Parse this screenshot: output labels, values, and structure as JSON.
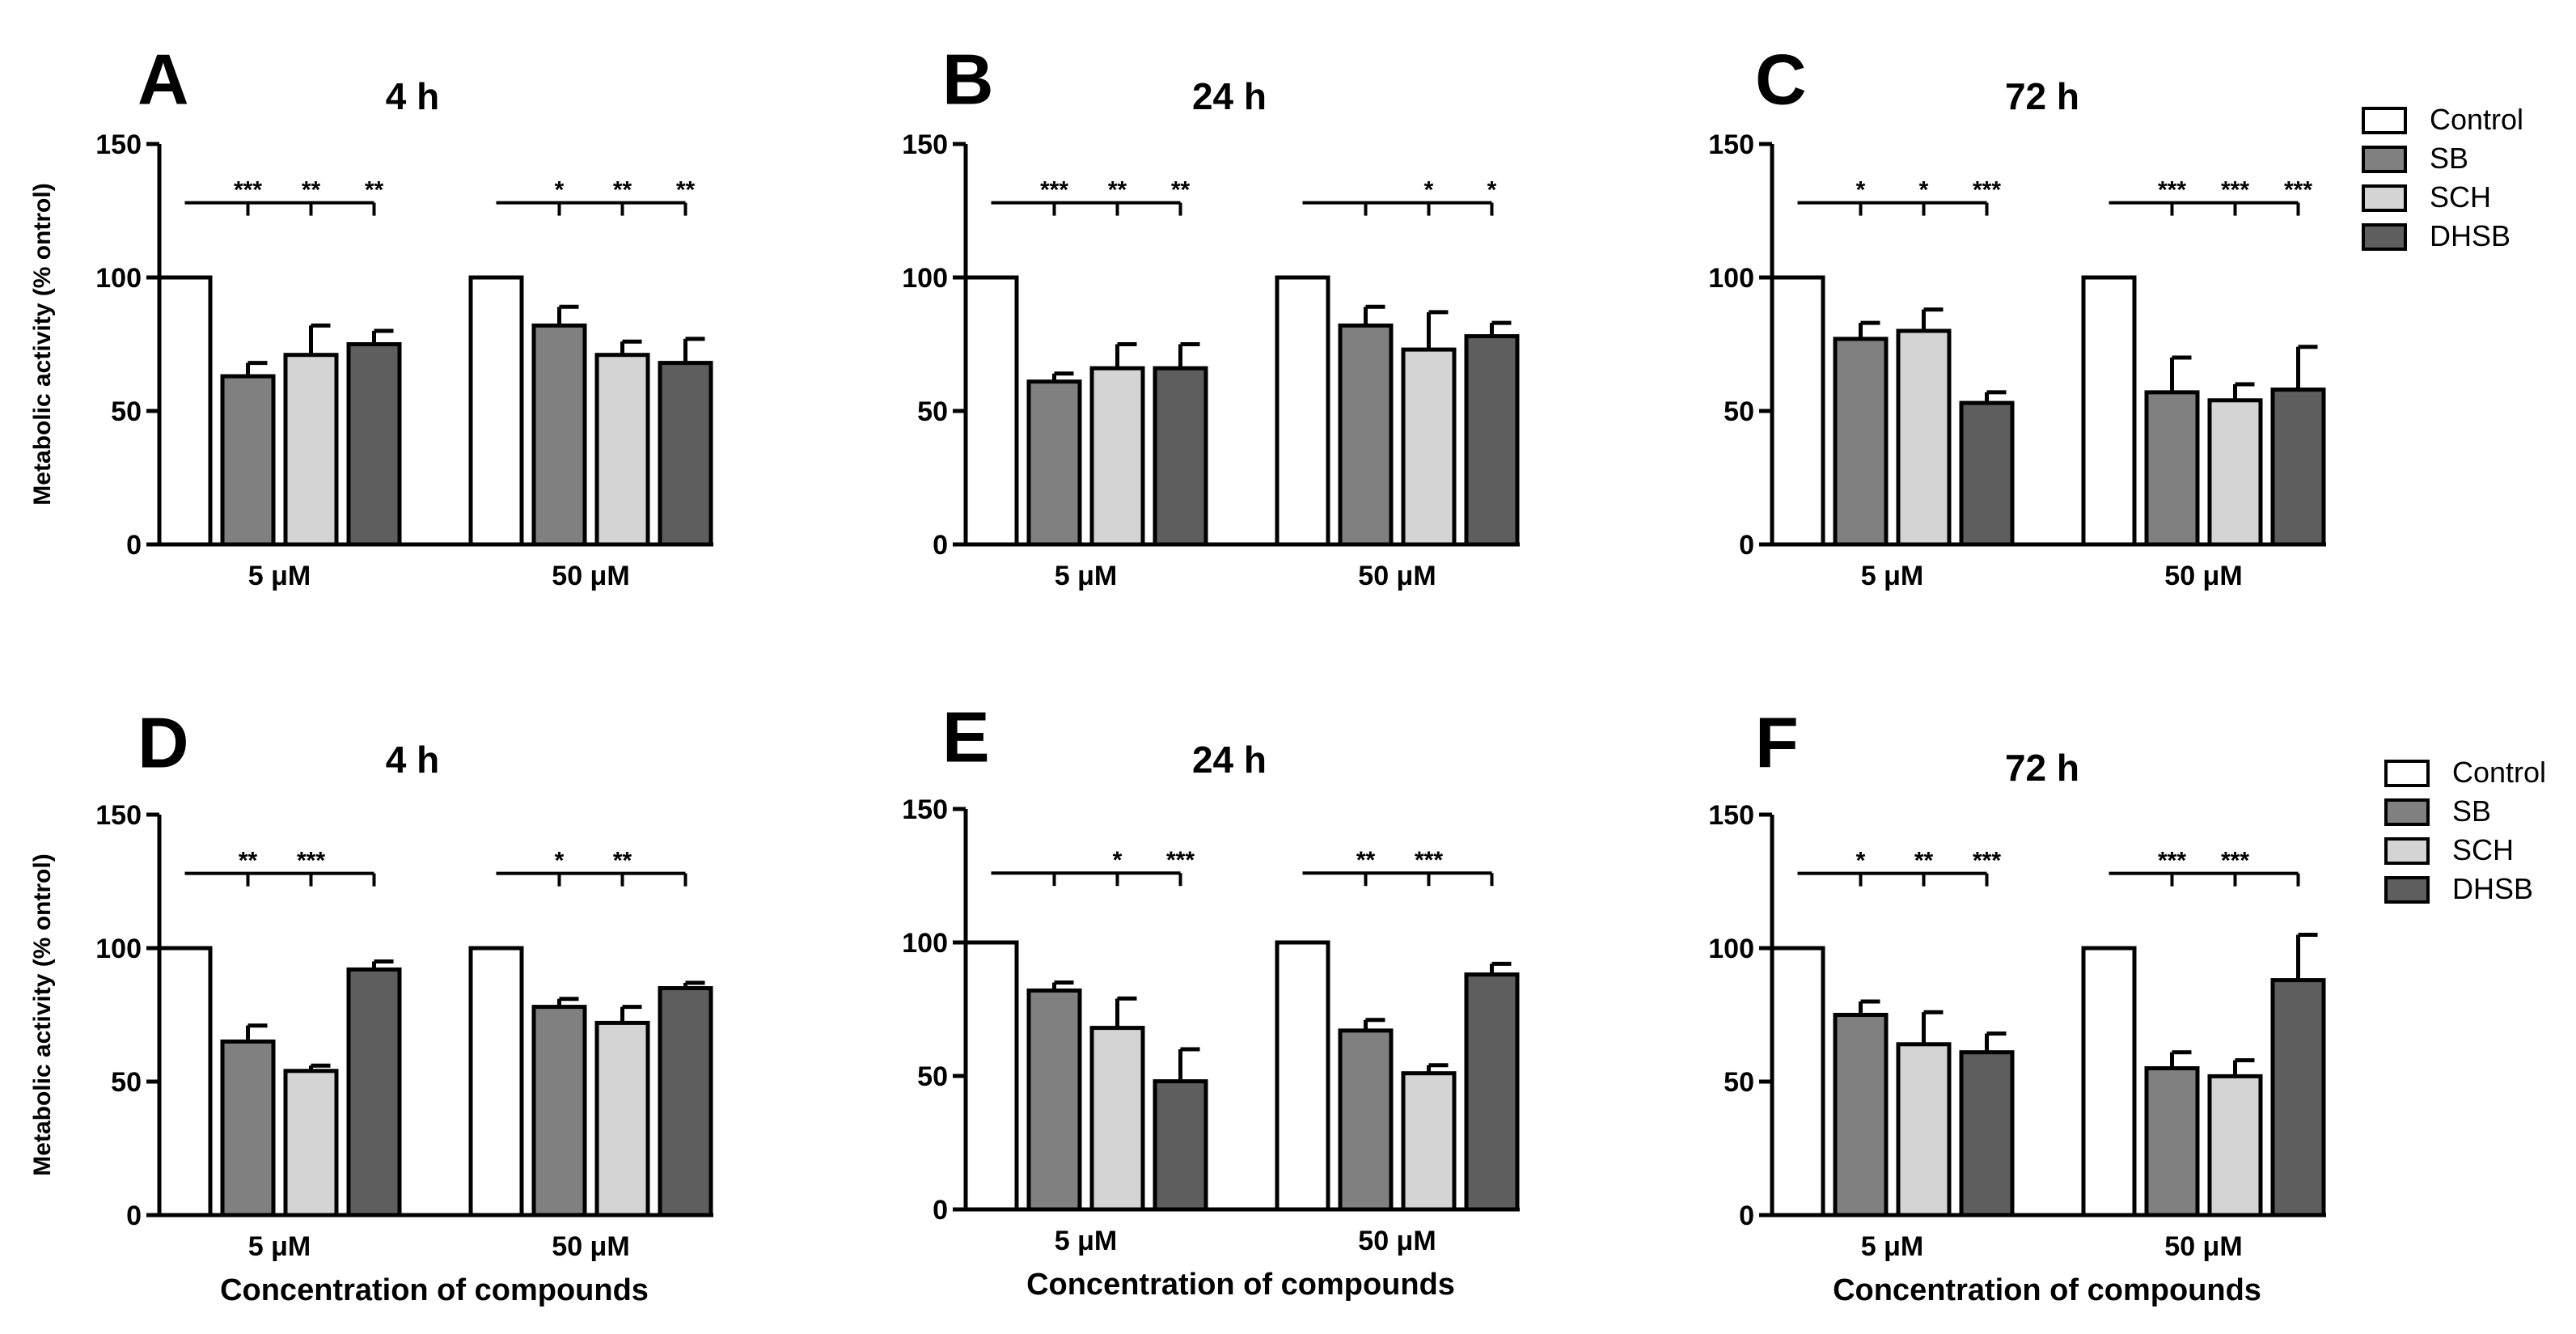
{
  "figure": {
    "xlabel_common": "Concentration of compounds"
  },
  "legend": {
    "entries": [
      "Control",
      "SB",
      "SCH",
      "DHSB"
    ]
  },
  "colors": {
    "Control": "#ffffff",
    "SB": "#808080",
    "SCH": "#d4d4d4",
    "DHSB": "#5e5e5e",
    "stroke": "#000000"
  },
  "chart_data": [
    {
      "panel": "A",
      "type": "bar",
      "title": "4 h",
      "categories": [
        "5 μM",
        "50 μM"
      ],
      "series": [
        {
          "name": "Control",
          "values": [
            100,
            100
          ],
          "errors": [
            0,
            0
          ]
        },
        {
          "name": "SB",
          "values": [
            63,
            82
          ],
          "errors": [
            5,
            7
          ]
        },
        {
          "name": "SCH",
          "values": [
            71,
            71
          ],
          "errors": [
            11,
            5
          ]
        },
        {
          "name": "DHSB",
          "values": [
            75,
            68
          ],
          "errors": [
            5,
            9
          ]
        }
      ],
      "ylabel": "Metabolic activity (% ontrol)",
      "xlabel": "",
      "ylim": [
        0,
        150
      ],
      "yticks": [
        0,
        50,
        100,
        150
      ],
      "significance": [
        {
          "group": 0,
          "bar": 1,
          "label": "***"
        },
        {
          "group": 0,
          "bar": 2,
          "label": "**"
        },
        {
          "group": 0,
          "bar": 3,
          "label": "**"
        },
        {
          "group": 1,
          "bar": 1,
          "label": "*"
        },
        {
          "group": 1,
          "bar": 2,
          "label": "**"
        },
        {
          "group": 1,
          "bar": 3,
          "label": "**"
        }
      ]
    },
    {
      "panel": "B",
      "type": "bar",
      "title": "24 h",
      "categories": [
        "5 μM",
        "50 μM"
      ],
      "series": [
        {
          "name": "Control",
          "values": [
            100,
            100
          ],
          "errors": [
            0,
            0
          ]
        },
        {
          "name": "SB",
          "values": [
            61,
            82
          ],
          "errors": [
            3,
            7
          ]
        },
        {
          "name": "SCH",
          "values": [
            66,
            73
          ],
          "errors": [
            9,
            14
          ]
        },
        {
          "name": "DHSB",
          "values": [
            66,
            78
          ],
          "errors": [
            9,
            5
          ]
        }
      ],
      "ylabel": "",
      "xlabel": "",
      "ylim": [
        0,
        150
      ],
      "yticks": [
        0,
        50,
        100,
        150
      ],
      "significance": [
        {
          "group": 0,
          "bar": 1,
          "label": "***"
        },
        {
          "group": 0,
          "bar": 2,
          "label": "**"
        },
        {
          "group": 0,
          "bar": 3,
          "label": "**"
        },
        {
          "group": 1,
          "bar": 1,
          "label": ""
        },
        {
          "group": 1,
          "bar": 2,
          "label": "*"
        },
        {
          "group": 1,
          "bar": 3,
          "label": "*"
        }
      ]
    },
    {
      "panel": "C",
      "type": "bar",
      "title": "72 h",
      "categories": [
        "5 μM",
        "50 μM"
      ],
      "series": [
        {
          "name": "Control",
          "values": [
            100,
            100
          ],
          "errors": [
            0,
            0
          ]
        },
        {
          "name": "SB",
          "values": [
            77,
            57
          ],
          "errors": [
            6,
            13
          ]
        },
        {
          "name": "SCH",
          "values": [
            80,
            54
          ],
          "errors": [
            8,
            6
          ]
        },
        {
          "name": "DHSB",
          "values": [
            53,
            58
          ],
          "errors": [
            4,
            16
          ]
        }
      ],
      "ylabel": "",
      "xlabel": "",
      "ylim": [
        0,
        150
      ],
      "yticks": [
        0,
        50,
        100,
        150
      ],
      "significance": [
        {
          "group": 0,
          "bar": 1,
          "label": "*"
        },
        {
          "group": 0,
          "bar": 2,
          "label": "*"
        },
        {
          "group": 0,
          "bar": 3,
          "label": "***"
        },
        {
          "group": 1,
          "bar": 1,
          "label": "***"
        },
        {
          "group": 1,
          "bar": 2,
          "label": "***"
        },
        {
          "group": 1,
          "bar": 3,
          "label": "***"
        }
      ]
    },
    {
      "panel": "D",
      "type": "bar",
      "title": "4 h",
      "categories": [
        "5 μM",
        "50 μM"
      ],
      "series": [
        {
          "name": "Control",
          "values": [
            100,
            100
          ],
          "errors": [
            0,
            0
          ]
        },
        {
          "name": "SB",
          "values": [
            65,
            78
          ],
          "errors": [
            6,
            3
          ]
        },
        {
          "name": "SCH",
          "values": [
            54,
            72
          ],
          "errors": [
            2,
            6
          ]
        },
        {
          "name": "DHSB",
          "values": [
            92,
            85
          ],
          "errors": [
            3,
            2
          ]
        }
      ],
      "ylabel": "Metabolic activity (% ontrol)",
      "xlabel": "Concentration of compounds",
      "ylim": [
        0,
        150
      ],
      "yticks": [
        0,
        50,
        100,
        150
      ],
      "significance": [
        {
          "group": 0,
          "bar": 1,
          "label": "**"
        },
        {
          "group": 0,
          "bar": 2,
          "label": "***"
        },
        {
          "group": 0,
          "bar": 3,
          "label": ""
        },
        {
          "group": 1,
          "bar": 1,
          "label": "*"
        },
        {
          "group": 1,
          "bar": 2,
          "label": "**"
        },
        {
          "group": 1,
          "bar": 3,
          "label": ""
        }
      ]
    },
    {
      "panel": "E",
      "type": "bar",
      "title": "24 h",
      "categories": [
        "5 μM",
        "50 μM"
      ],
      "series": [
        {
          "name": "Control",
          "values": [
            100,
            100
          ],
          "errors": [
            0,
            0
          ]
        },
        {
          "name": "SB",
          "values": [
            82,
            67
          ],
          "errors": [
            3,
            4
          ]
        },
        {
          "name": "SCH",
          "values": [
            68,
            51
          ],
          "errors": [
            11,
            3
          ]
        },
        {
          "name": "DHSB",
          "values": [
            48,
            88
          ],
          "errors": [
            12,
            4
          ]
        }
      ],
      "ylabel": "",
      "xlabel": "Concentration of compounds",
      "ylim": [
        0,
        150
      ],
      "yticks": [
        0,
        50,
        100,
        150
      ],
      "significance": [
        {
          "group": 0,
          "bar": 1,
          "label": ""
        },
        {
          "group": 0,
          "bar": 2,
          "label": "*"
        },
        {
          "group": 0,
          "bar": 3,
          "label": "***"
        },
        {
          "group": 1,
          "bar": 1,
          "label": "**"
        },
        {
          "group": 1,
          "bar": 2,
          "label": "***"
        },
        {
          "group": 1,
          "bar": 3,
          "label": ""
        }
      ]
    },
    {
      "panel": "F",
      "type": "bar",
      "title": "72 h",
      "categories": [
        "5 μM",
        "50 μM"
      ],
      "series": [
        {
          "name": "Control",
          "values": [
            100,
            100
          ],
          "errors": [
            0,
            0
          ]
        },
        {
          "name": "SB",
          "values": [
            75,
            55
          ],
          "errors": [
            5,
            6
          ]
        },
        {
          "name": "SCH",
          "values": [
            64,
            52
          ],
          "errors": [
            12,
            6
          ]
        },
        {
          "name": "DHSB",
          "values": [
            61,
            88
          ],
          "errors": [
            7,
            17
          ]
        }
      ],
      "ylabel": "",
      "xlabel": "Concentration of compounds",
      "ylim": [
        0,
        150
      ],
      "yticks": [
        0,
        50,
        100,
        150
      ],
      "significance": [
        {
          "group": 0,
          "bar": 1,
          "label": "*"
        },
        {
          "group": 0,
          "bar": 2,
          "label": "**"
        },
        {
          "group": 0,
          "bar": 3,
          "label": "***"
        },
        {
          "group": 1,
          "bar": 1,
          "label": "***"
        },
        {
          "group": 1,
          "bar": 2,
          "label": "***"
        },
        {
          "group": 1,
          "bar": 3,
          "label": ""
        }
      ]
    }
  ]
}
